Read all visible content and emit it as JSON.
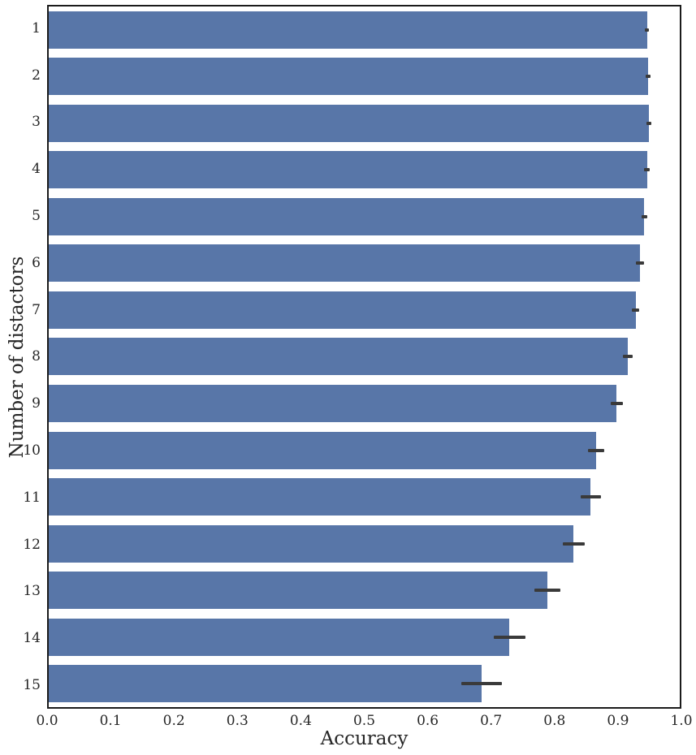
{
  "chart_data": {
    "type": "bar",
    "orientation": "horizontal",
    "title": "",
    "xlabel": "Accuracy",
    "ylabel": "Number of distactors",
    "xlim": [
      0.0,
      1.0
    ],
    "x_ticks": [
      "0.0",
      "0.1",
      "0.2",
      "0.3",
      "0.4",
      "0.5",
      "0.6",
      "0.7",
      "0.8",
      "0.9",
      "1.0"
    ],
    "categories": [
      "1",
      "2",
      "3",
      "4",
      "5",
      "6",
      "7",
      "8",
      "9",
      "10",
      "11",
      "12",
      "13",
      "14",
      "15"
    ],
    "values": [
      0.948,
      0.95,
      0.951,
      0.948,
      0.944,
      0.937,
      0.93,
      0.918,
      0.9,
      0.867,
      0.859,
      0.832,
      0.79,
      0.73,
      0.686
    ],
    "error_bars": [
      0.003,
      0.004,
      0.004,
      0.004,
      0.004,
      0.006,
      0.006,
      0.008,
      0.01,
      0.013,
      0.016,
      0.017,
      0.021,
      0.025,
      0.032
    ],
    "grid": false,
    "legend": false,
    "bar_color": "#5876a8",
    "error_color": "#3a3a3a",
    "spine_color": "#1b1b1b",
    "text_color": "#262626"
  }
}
